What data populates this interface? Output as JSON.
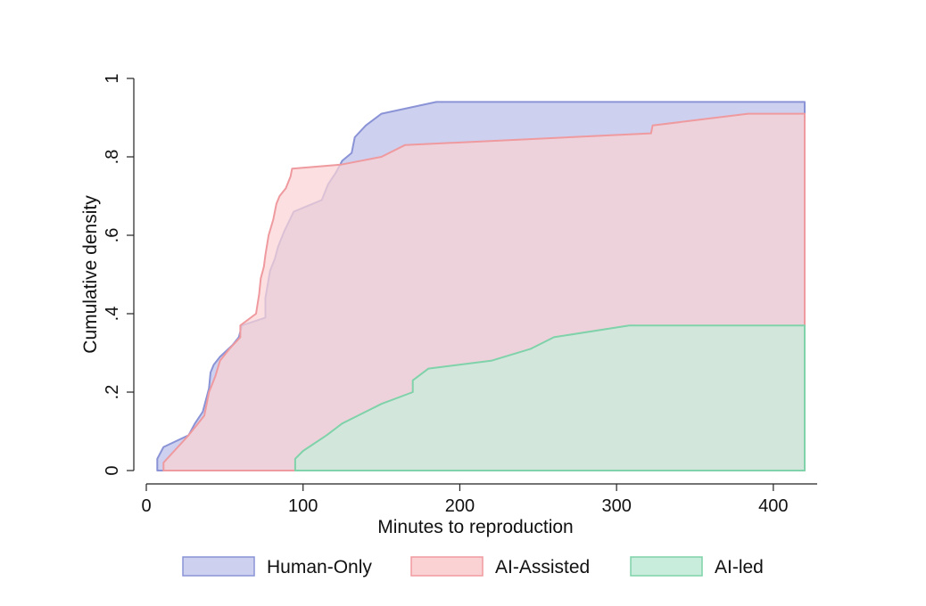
{
  "chart_data": {
    "type": "area",
    "title": "",
    "xlabel": "Minutes to reproduction",
    "ylabel": "Cumulative density",
    "xlim": [
      0,
      420
    ],
    "ylim": [
      0,
      1
    ],
    "x_ticks": [
      0,
      100,
      200,
      300,
      400
    ],
    "x_tick_labels": [
      "0",
      "100",
      "200",
      "300",
      "400"
    ],
    "y_ticks": [
      0,
      0.2,
      0.4,
      0.6,
      0.8,
      1
    ],
    "y_tick_labels": [
      "0",
      ".2",
      ".4",
      ".6",
      ".8",
      "1"
    ],
    "grid": false,
    "legend_position": "bottom",
    "series": [
      {
        "name": "Human-Only",
        "fill": "#cdd0ee",
        "stroke": "#8a93d6",
        "x": [
          7,
          7,
          11,
          27,
          31,
          36,
          40,
          41,
          43,
          47,
          55,
          59,
          61,
          76,
          76,
          79,
          82,
          84,
          86,
          88,
          94,
          112,
          116,
          121,
          125,
          131,
          133,
          140,
          150,
          185,
          420
        ],
        "y": [
          0,
          0.03,
          0.06,
          0.09,
          0.12,
          0.15,
          0.21,
          0.25,
          0.27,
          0.29,
          0.32,
          0.34,
          0.37,
          0.39,
          0.44,
          0.51,
          0.54,
          0.57,
          0.59,
          0.61,
          0.66,
          0.69,
          0.73,
          0.76,
          0.79,
          0.81,
          0.85,
          0.88,
          0.91,
          0.94,
          0.94
        ]
      },
      {
        "name": "AI-Assisted",
        "fill": "#fbd2d4",
        "stroke": "#ef9a9f",
        "x": [
          11,
          11,
          27,
          33,
          37,
          40,
          42,
          44,
          47,
          53,
          60,
          60,
          70,
          72,
          73,
          75,
          76,
          78,
          81,
          83,
          85,
          89,
          92,
          93,
          124,
          150,
          165,
          322,
          323,
          384,
          420
        ],
        "y": [
          0,
          0.02,
          0.09,
          0.12,
          0.14,
          0.2,
          0.22,
          0.24,
          0.28,
          0.31,
          0.34,
          0.37,
          0.4,
          0.45,
          0.49,
          0.52,
          0.55,
          0.6,
          0.64,
          0.68,
          0.7,
          0.72,
          0.75,
          0.77,
          0.78,
          0.8,
          0.83,
          0.86,
          0.88,
          0.91,
          0.91
        ]
      },
      {
        "name": "AI-led",
        "fill": "#c9eddc",
        "stroke": "#7fd2a9",
        "x": [
          95,
          95,
          100,
          115,
          125,
          135,
          150,
          170,
          170,
          180,
          220,
          245,
          260,
          308,
          420
        ],
        "y": [
          0,
          0.03,
          0.05,
          0.09,
          0.12,
          0.14,
          0.17,
          0.2,
          0.23,
          0.26,
          0.28,
          0.31,
          0.34,
          0.37,
          0.37
        ]
      }
    ]
  }
}
